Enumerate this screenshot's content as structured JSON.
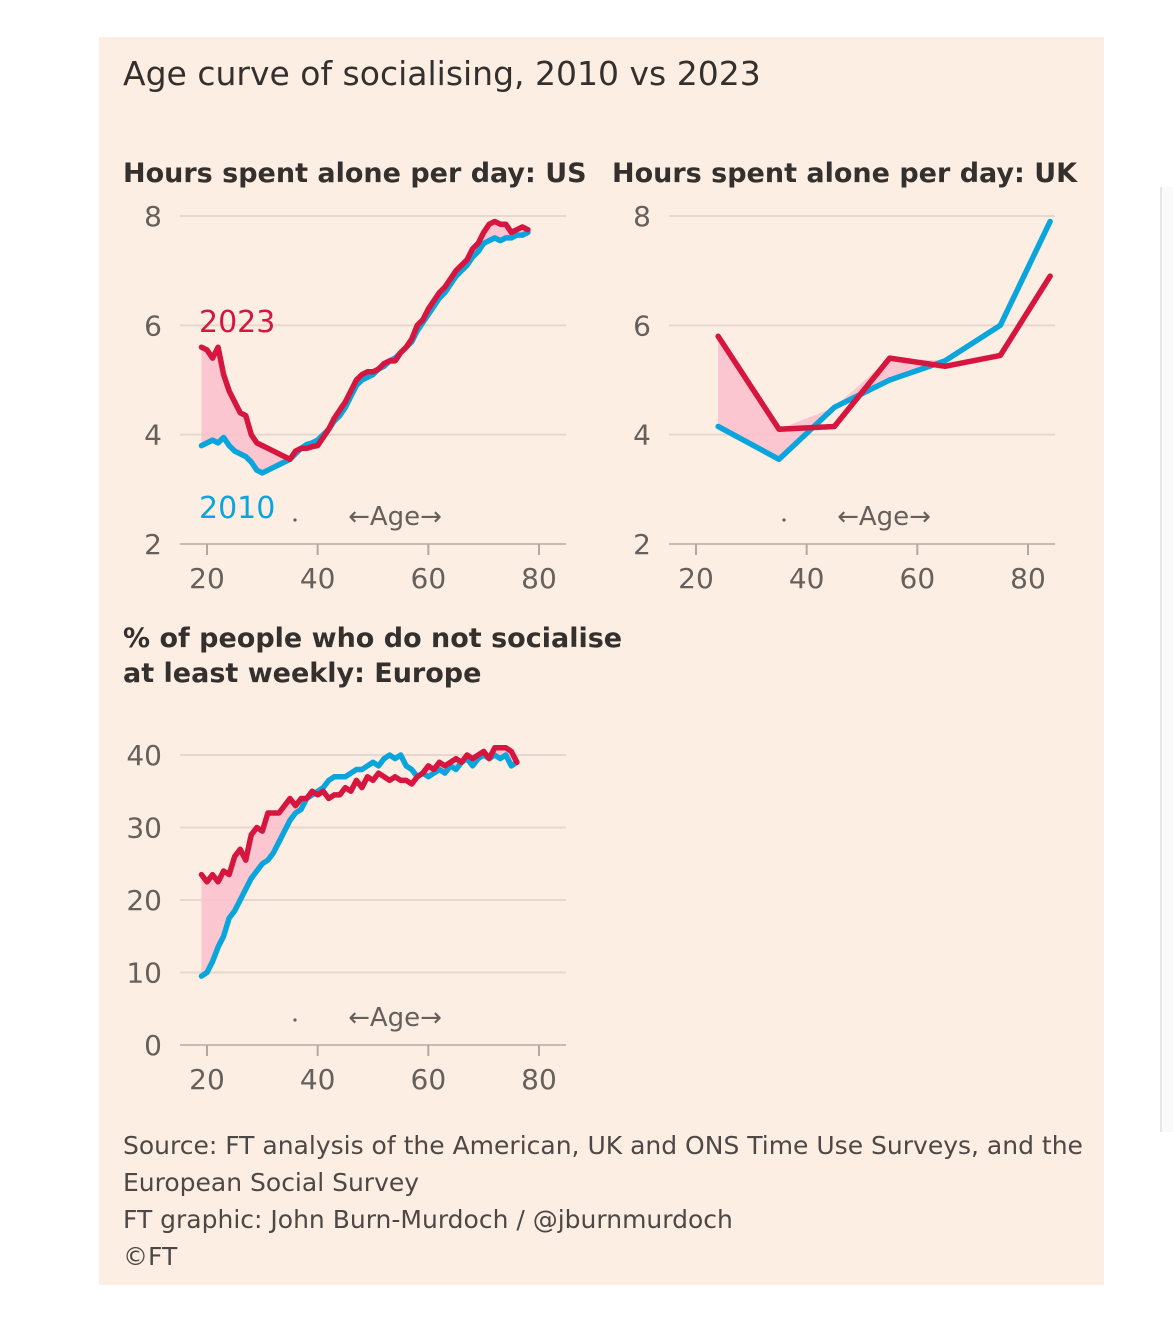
{
  "title": "Age curve of socialising, 2010 vs 2023",
  "colors": {
    "background": "#fdeee3",
    "series_2023": "#d6163f",
    "series_2010": "#0aa5dc",
    "gap_fill": "#fbc1cc",
    "grid": "#e6d8ce"
  },
  "chart_data": [
    {
      "type": "line",
      "title": "Hours spent alone per day: US",
      "xlabel": "←Age→",
      "xlim": [
        15,
        85
      ],
      "ylim": [
        2,
        8
      ],
      "xticks": [
        20,
        40,
        60,
        80
      ],
      "yticks": [
        2,
        4,
        6,
        8
      ],
      "series_labels": [
        "2023",
        "2010"
      ],
      "fill_between": "2023 above 2010",
      "series": [
        {
          "name": "2023",
          "x": [
            19,
            20,
            21,
            22,
            23,
            24,
            25,
            26,
            27,
            28,
            29,
            30,
            31,
            32,
            33,
            34,
            35,
            36,
            37,
            38,
            39,
            40,
            41,
            42,
            43,
            44,
            45,
            46,
            47,
            48,
            49,
            50,
            51,
            52,
            53,
            54,
            55,
            56,
            57,
            58,
            59,
            60,
            61,
            62,
            63,
            64,
            65,
            66,
            67,
            68,
            69,
            70,
            71,
            72,
            73,
            74,
            75,
            76,
            77,
            78
          ],
          "y": [
            5.6,
            5.55,
            5.4,
            5.6,
            5.1,
            4.8,
            4.6,
            4.4,
            4.35,
            4.0,
            3.85,
            3.8,
            3.75,
            3.7,
            3.65,
            3.6,
            3.55,
            3.7,
            3.75,
            3.75,
            3.78,
            3.8,
            3.95,
            4.1,
            4.3,
            4.45,
            4.6,
            4.8,
            5.0,
            5.1,
            5.15,
            5.15,
            5.2,
            5.3,
            5.35,
            5.35,
            5.5,
            5.6,
            5.75,
            6.0,
            6.1,
            6.3,
            6.45,
            6.6,
            6.7,
            6.85,
            7.0,
            7.1,
            7.2,
            7.4,
            7.5,
            7.7,
            7.85,
            7.9,
            7.85,
            7.85,
            7.7,
            7.75,
            7.8,
            7.75
          ]
        },
        {
          "name": "2010",
          "x": [
            19,
            20,
            21,
            22,
            23,
            24,
            25,
            26,
            27,
            28,
            29,
            30,
            31,
            32,
            33,
            34,
            35,
            36,
            37,
            38,
            39,
            40,
            41,
            42,
            43,
            44,
            45,
            46,
            47,
            48,
            49,
            50,
            51,
            52,
            53,
            54,
            55,
            56,
            57,
            58,
            59,
            60,
            61,
            62,
            63,
            64,
            65,
            66,
            67,
            68,
            69,
            70,
            71,
            72,
            73,
            74,
            75,
            76,
            77,
            78
          ],
          "y": [
            3.8,
            3.85,
            3.9,
            3.85,
            3.95,
            3.8,
            3.7,
            3.65,
            3.6,
            3.5,
            3.35,
            3.3,
            3.35,
            3.4,
            3.45,
            3.5,
            3.55,
            3.65,
            3.75,
            3.82,
            3.85,
            3.9,
            4.0,
            4.1,
            4.25,
            4.35,
            4.5,
            4.7,
            4.9,
            5.0,
            5.05,
            5.1,
            5.2,
            5.25,
            5.35,
            5.4,
            5.5,
            5.6,
            5.7,
            5.9,
            6.05,
            6.2,
            6.35,
            6.5,
            6.6,
            6.75,
            6.9,
            7.0,
            7.1,
            7.25,
            7.35,
            7.5,
            7.55,
            7.6,
            7.55,
            7.6,
            7.6,
            7.65,
            7.65,
            7.7
          ]
        }
      ]
    },
    {
      "type": "line",
      "title": "Hours spent alone per day: UK",
      "xlabel": "←Age→",
      "xlim": [
        15,
        85
      ],
      "ylim": [
        2,
        8
      ],
      "xticks": [
        20,
        40,
        60,
        80
      ],
      "yticks": [
        2,
        4,
        6,
        8
      ],
      "fill_between": "2023 above 2010",
      "series": [
        {
          "name": "2023",
          "x": [
            24,
            35,
            45,
            55,
            65,
            75,
            84
          ],
          "y": [
            5.8,
            4.1,
            4.15,
            5.4,
            5.25,
            5.45,
            6.9
          ]
        },
        {
          "name": "2010",
          "x": [
            24,
            35,
            45,
            55,
            65,
            75,
            84
          ],
          "y": [
            4.15,
            3.55,
            4.5,
            5.0,
            5.35,
            6.0,
            7.9
          ]
        }
      ]
    },
    {
      "type": "line",
      "title_lines": [
        "% of people who do not socialise",
        "at least weekly: Europe"
      ],
      "xlabel": "←Age→",
      "xlim": [
        15,
        85
      ],
      "ylim": [
        0,
        40
      ],
      "xticks": [
        20,
        40,
        60,
        80
      ],
      "yticks": [
        0,
        10,
        20,
        30,
        40
      ],
      "fill_between": "2023 above 2010",
      "series": [
        {
          "name": "2023",
          "x": [
            19,
            20,
            21,
            22,
            23,
            24,
            25,
            26,
            27,
            28,
            29,
            30,
            31,
            32,
            33,
            34,
            35,
            36,
            37,
            38,
            39,
            40,
            41,
            42,
            43,
            44,
            45,
            46,
            47,
            48,
            49,
            50,
            51,
            52,
            53,
            54,
            55,
            56,
            57,
            58,
            59,
            60,
            61,
            62,
            63,
            64,
            65,
            66,
            67,
            68,
            69,
            70,
            71,
            72,
            73,
            74,
            75,
            76
          ],
          "y": [
            23.5,
            22.5,
            23.5,
            22.5,
            24,
            23.5,
            26,
            27,
            25.5,
            29,
            30,
            29.5,
            32,
            32,
            32,
            33,
            34,
            33,
            34,
            34,
            35,
            34.5,
            35,
            34,
            34.5,
            34.5,
            35.5,
            35,
            36.5,
            35.5,
            37,
            36.5,
            37.5,
            37,
            36.5,
            37,
            36.5,
            36.5,
            36,
            37,
            37.5,
            38.5,
            38,
            39,
            38.5,
            39,
            39.5,
            39,
            40,
            39.5,
            40,
            40.5,
            39.5,
            41,
            41,
            41,
            40.5,
            39
          ]
        },
        {
          "name": "2010",
          "x": [
            19,
            20,
            21,
            22,
            23,
            24,
            25,
            26,
            27,
            28,
            29,
            30,
            31,
            32,
            33,
            34,
            35,
            36,
            37,
            38,
            39,
            40,
            41,
            42,
            43,
            44,
            45,
            46,
            47,
            48,
            49,
            50,
            51,
            52,
            53,
            54,
            55,
            56,
            57,
            58,
            59,
            60,
            61,
            62,
            63,
            64,
            65,
            66,
            67,
            68,
            69,
            70,
            71,
            72,
            73,
            74,
            75,
            76
          ],
          "y": [
            9.5,
            10,
            11.5,
            13.5,
            15,
            17.5,
            18.5,
            20,
            21.5,
            23,
            24,
            25,
            25.5,
            26.5,
            28,
            29.5,
            31,
            32,
            32.5,
            34,
            34.5,
            35,
            35.5,
            36.5,
            37,
            37,
            37,
            37.5,
            38,
            38,
            38.5,
            39,
            38.5,
            39.5,
            40,
            39.5,
            40,
            38.5,
            38,
            37,
            37.5,
            37,
            37.5,
            38,
            37.5,
            38.5,
            38,
            39,
            39.5,
            38.5,
            39.5,
            40,
            39.5,
            40,
            39.5,
            40,
            38.5,
            39
          ]
        }
      ]
    }
  ],
  "source_lines": [
    "Source: FT analysis of the American, UK and ONS Time Use Surveys, and the",
    "European Social Survey",
    "FT graphic: John Burn-Murdoch / @jburnmurdoch",
    "©FT"
  ]
}
